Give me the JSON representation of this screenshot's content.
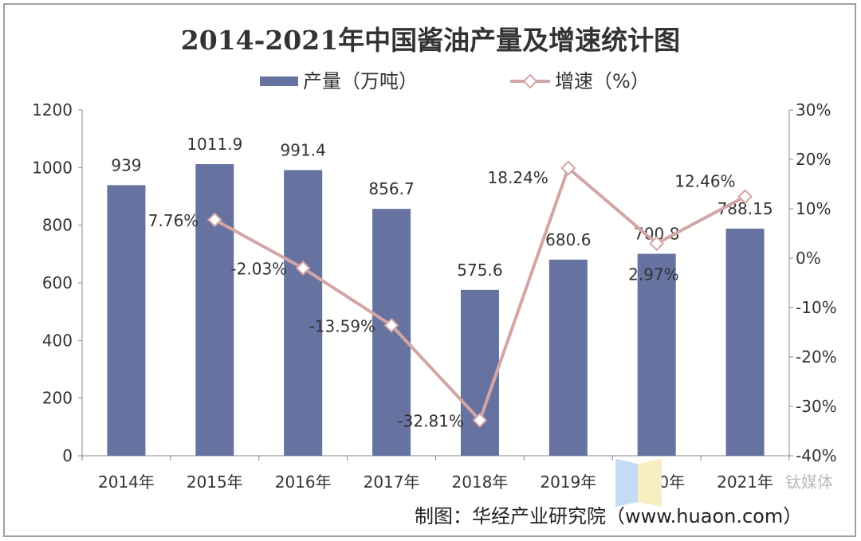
{
  "chart_data": {
    "type": "bar+line",
    "title": "2014-2021年中国酱油产量及增速统计图",
    "categories": [
      "2014年",
      "2015年",
      "2016年",
      "2017年",
      "2018年",
      "2019年",
      "2020年",
      "2021年"
    ],
    "series": [
      {
        "name": "产量（万吨）",
        "type": "bar",
        "axis": "left",
        "color": "#6672a0",
        "values": [
          939,
          1011.9,
          991.4,
          856.7,
          575.6,
          680.6,
          700.8,
          788.15
        ],
        "labels": [
          "939",
          "1011.9",
          "991.4",
          "856.7",
          "575.6",
          "680.6",
          "700.8",
          "788.15"
        ]
      },
      {
        "name": "增速（%）",
        "type": "line",
        "axis": "right",
        "color": "#d4a5a5",
        "marker": "diamond-open",
        "values": [
          null,
          7.76,
          -2.03,
          -13.59,
          -32.81,
          18.24,
          2.97,
          12.46
        ],
        "labels": [
          "",
          "7.76%",
          "-2.03%",
          "-13.59%",
          "-32.81%",
          "18.24%",
          "2.97%",
          "12.46%"
        ]
      }
    ],
    "y_left": {
      "range": [
        0,
        1200
      ],
      "ticks": [
        "0",
        "200",
        "400",
        "600",
        "800",
        "1000",
        "1200"
      ]
    },
    "y_right": {
      "range": [
        -40,
        30
      ],
      "ticks": [
        "-40%",
        "-30%",
        "-20%",
        "-10%",
        "0%",
        "10%",
        "20%",
        "30%"
      ]
    },
    "grid": false,
    "legend": "top-center"
  },
  "footer": {
    "source": "制图：华经产业研究院（www.huaon.com）"
  },
  "watermarks": {
    "logo": "华经情报网 huaon",
    "wechat": "钛媒体"
  }
}
